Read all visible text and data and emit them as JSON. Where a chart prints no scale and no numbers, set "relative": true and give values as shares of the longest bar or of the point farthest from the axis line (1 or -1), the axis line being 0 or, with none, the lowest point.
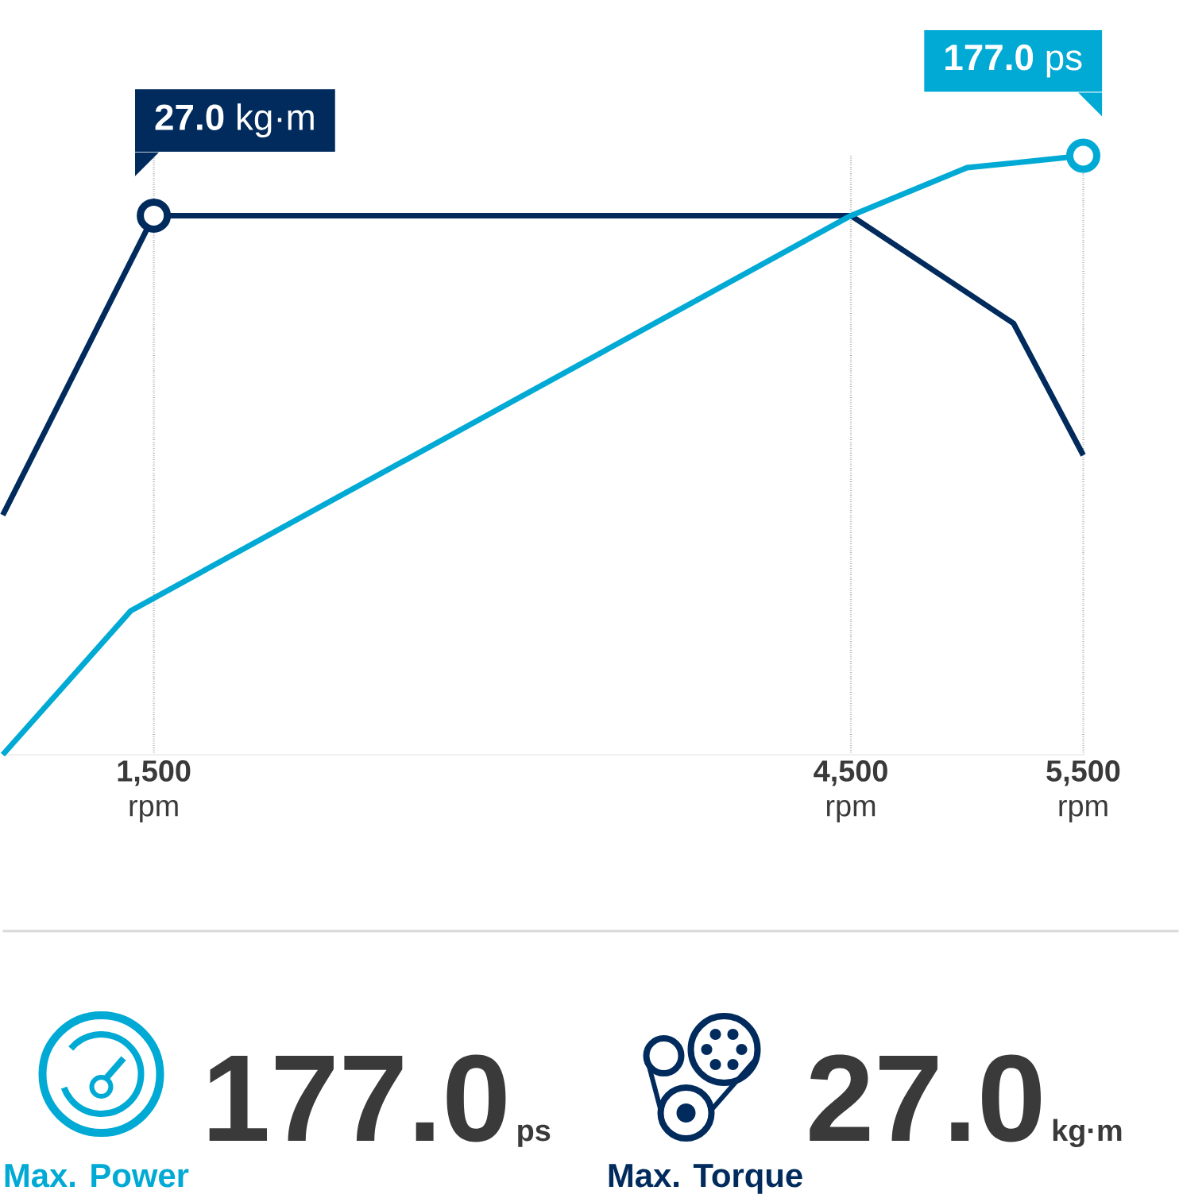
{
  "chart_data": {
    "type": "line",
    "relative": true,
    "xlim": [
      850,
      5500
    ],
    "xticks": [
      {
        "value": 1500,
        "label": "**1,500** rpm"
      },
      {
        "value": 4500,
        "label": "**4,500** rpm"
      },
      {
        "value": 5500,
        "label": "**5,500** rpm"
      }
    ],
    "grid": "x",
    "marker": "none",
    "line_style": "solid",
    "tick_labels": "x",
    "series": [
      {
        "color": "#002b5c",
        "x": [
          850,
          1500,
          4500,
          5200,
          5500
        ],
        "values": [
          0.4,
          0.9,
          0.9,
          0.72,
          0.5
        ]
      },
      {
        "color": "#00aad4",
        "x": [
          850,
          1400,
          4500,
          5000,
          5500
        ],
        "values": [
          0,
          0.24,
          0.9,
          0.98,
          1
        ]
      }
    ],
    "annotations": [
      {
        "text": "**27.0** kg·m",
        "x": 1500,
        "y": 0.9
      },
      {
        "text": "**177.0** ps",
        "x": 5500,
        "y": 1
      },
      "177.0",
      "ps",
      "Max. Power",
      "27.0",
      "kg·m",
      "Max. Torque"
    ]
  }
}
